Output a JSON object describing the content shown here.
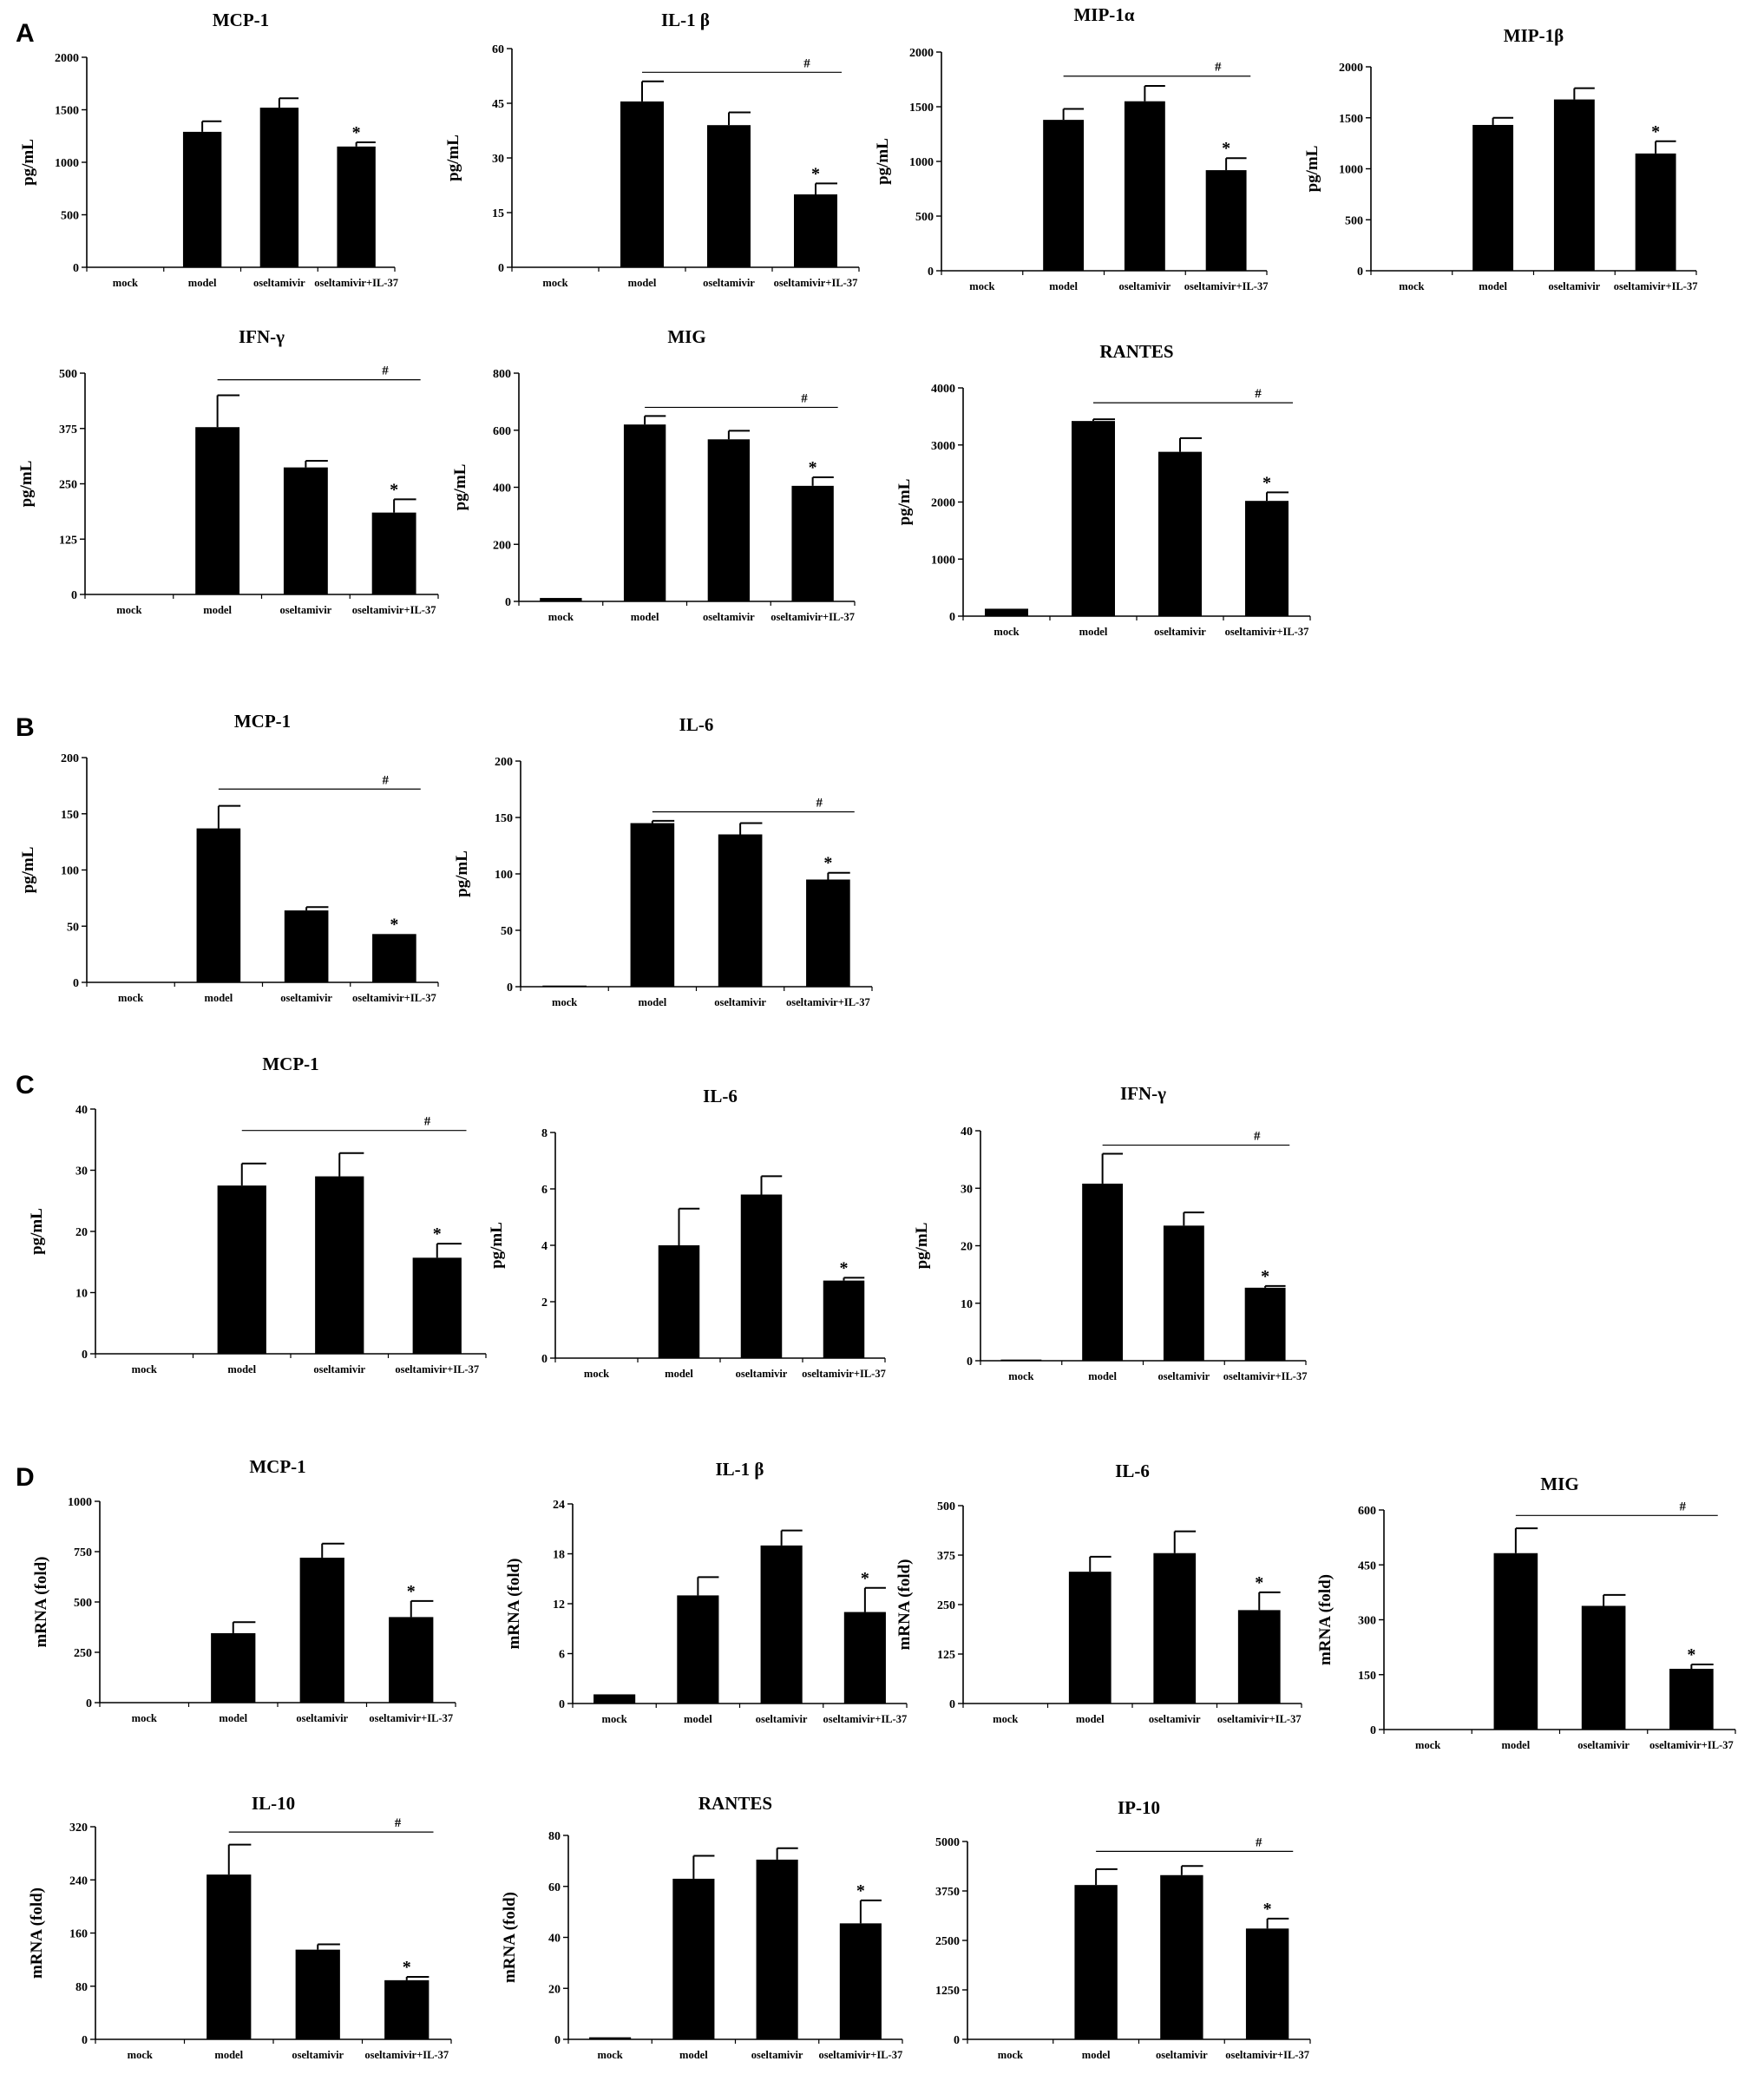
{
  "panels": [
    {
      "label": "A"
    },
    {
      "label": "B"
    },
    {
      "label": "C"
    },
    {
      "label": "D"
    }
  ],
  "chart_data": [
    {
      "panel": "A",
      "type": "bar",
      "title": "MCP-1",
      "ylabel": "pg/mL",
      "ylim": [
        0,
        2000
      ],
      "yticks": [
        0,
        500,
        1000,
        1500,
        2000
      ],
      "categories": [
        "mock",
        "model",
        "oseltamivir",
        "oseltamivir+IL-37"
      ],
      "values": [
        0,
        1290,
        1520,
        1150
      ],
      "errors": [
        0,
        100,
        90,
        40
      ],
      "stars": [
        "",
        "",
        "",
        "*"
      ],
      "hash": null
    },
    {
      "panel": "A",
      "type": "bar",
      "title": "IL-1 β",
      "ylabel": "pg/mL",
      "ylim": [
        0,
        60
      ],
      "yticks": [
        0,
        15,
        30,
        45,
        60
      ],
      "categories": [
        "mock",
        "model",
        "oseltamivir",
        "oseltamivir+IL-37"
      ],
      "values": [
        0,
        45.5,
        39,
        20
      ],
      "errors": [
        0,
        5.5,
        3.5,
        3
      ],
      "stars": [
        "",
        "",
        "",
        "*"
      ],
      "hash": {
        "label": "#",
        "from": 1,
        "to": 3,
        "y": 53.5
      }
    },
    {
      "panel": "A",
      "type": "bar",
      "title": "MIP-1α",
      "ylabel": "pg/mL",
      "ylim": [
        0,
        2000
      ],
      "yticks": [
        0,
        500,
        1000,
        1500,
        2000
      ],
      "categories": [
        "mock",
        "model",
        "oseltamivir",
        "oseltamivir+IL-37"
      ],
      "values": [
        0,
        1380,
        1550,
        920
      ],
      "errors": [
        0,
        100,
        140,
        110
      ],
      "stars": [
        "",
        "",
        "",
        "*"
      ],
      "hash": {
        "label": "#",
        "from": 1,
        "to": 3,
        "y": 1780
      }
    },
    {
      "panel": "A",
      "type": "bar",
      "title": "MIP-1β",
      "ylabel": "pg/mL",
      "ylim": [
        0,
        2000
      ],
      "yticks": [
        0,
        500,
        1000,
        1500,
        2000
      ],
      "categories": [
        "mock",
        "model",
        "oseltamivir",
        "oseltamivir+IL-37"
      ],
      "values": [
        0,
        1430,
        1680,
        1150
      ],
      "errors": [
        0,
        70,
        110,
        120
      ],
      "stars": [
        "",
        "",
        "",
        "*"
      ],
      "hash": null
    },
    {
      "panel": "A",
      "type": "bar",
      "title": "IFN-γ",
      "ylabel": "pg/mL",
      "ylim": [
        0,
        500
      ],
      "yticks": [
        0,
        125,
        250,
        375,
        500
      ],
      "categories": [
        "mock",
        "model",
        "oseltamivir",
        "oseltamivir+IL-37"
      ],
      "values": [
        0,
        378,
        287,
        185
      ],
      "errors": [
        0,
        72,
        15,
        30
      ],
      "stars": [
        "",
        "",
        "",
        "*"
      ],
      "hash": {
        "label": "#",
        "from": 1,
        "to": 3,
        "y": 485
      }
    },
    {
      "panel": "A",
      "type": "bar",
      "title": "MIG",
      "ylabel": "pg/mL",
      "ylim": [
        0,
        800
      ],
      "yticks": [
        0,
        200,
        400,
        600,
        800
      ],
      "categories": [
        "mock",
        "model",
        "oseltamivir",
        "oseltamivir+IL-37"
      ],
      "values": [
        12,
        620,
        568,
        405
      ],
      "errors": [
        0,
        30,
        30,
        30
      ],
      "stars": [
        "",
        "",
        "",
        "*"
      ],
      "hash": {
        "label": "#",
        "from": 1,
        "to": 3,
        "y": 680
      }
    },
    {
      "panel": "A",
      "type": "bar",
      "title": "RANTES",
      "ylabel": "pg/mL",
      "ylim": [
        0,
        4000
      ],
      "yticks": [
        0,
        1000,
        2000,
        3000,
        4000
      ],
      "categories": [
        "mock",
        "model",
        "oseltamivir",
        "oseltamivir+IL-37"
      ],
      "values": [
        130,
        3420,
        2880,
        2020
      ],
      "errors": [
        0,
        30,
        240,
        150
      ],
      "stars": [
        "",
        "",
        "",
        "*"
      ],
      "hash": {
        "label": "#",
        "from": 1,
        "to": 3,
        "y": 3740
      }
    },
    {
      "panel": "B",
      "type": "bar",
      "title": "MCP-1",
      "ylabel": "pg/mL",
      "ylim": [
        0,
        200
      ],
      "yticks": [
        0,
        50,
        100,
        150,
        200
      ],
      "categories": [
        "mock",
        "model",
        "oseltamivir",
        "oseltamivir+IL-37"
      ],
      "values": [
        0,
        137,
        64,
        43
      ],
      "errors": [
        0,
        20,
        3,
        0
      ],
      "stars": [
        "",
        "",
        "",
        "*"
      ],
      "hash": {
        "label": "#",
        "from": 1,
        "to": 3,
        "y": 172
      }
    },
    {
      "panel": "B",
      "type": "bar",
      "title": "IL-6",
      "ylabel": "pg/mL",
      "ylim": [
        0,
        200
      ],
      "yticks": [
        0,
        50,
        100,
        150,
        200
      ],
      "categories": [
        "mock",
        "model",
        "oseltamivir",
        "oseltamivir+IL-37"
      ],
      "values": [
        1,
        145,
        135,
        95
      ],
      "errors": [
        0,
        2,
        10,
        6
      ],
      "stars": [
        "",
        "",
        "",
        "*"
      ],
      "hash": {
        "label": "#",
        "from": 1,
        "to": 3,
        "y": 155
      }
    },
    {
      "panel": "C",
      "type": "bar",
      "title": "MCP-1",
      "ylabel": "pg/mL",
      "ylim": [
        0,
        40
      ],
      "yticks": [
        0,
        10,
        20,
        30,
        40
      ],
      "categories": [
        "mock",
        "model",
        "oseltamivir",
        "oseltamivir+IL-37"
      ],
      "values": [
        0,
        27.5,
        29,
        15.7
      ],
      "errors": [
        0,
        3.6,
        3.8,
        2.3
      ],
      "stars": [
        "",
        "",
        "",
        "*"
      ],
      "hash": {
        "label": "#",
        "from": 1,
        "to": 3,
        "y": 36.5
      }
    },
    {
      "panel": "C",
      "type": "bar",
      "title": "IL-6",
      "ylabel": "pg/mL",
      "ylim": [
        0,
        8
      ],
      "yticks": [
        0,
        2,
        4,
        6,
        8
      ],
      "categories": [
        "mock",
        "model",
        "oseltamivir",
        "oseltamivir+IL-37"
      ],
      "values": [
        0,
        4,
        5.8,
        2.75
      ],
      "errors": [
        0,
        1.3,
        0.65,
        0.1
      ],
      "stars": [
        "",
        "",
        "",
        "*"
      ],
      "hash": null
    },
    {
      "panel": "C",
      "type": "bar",
      "title": "IFN-γ",
      "ylabel": "pg/mL",
      "ylim": [
        0,
        40
      ],
      "yticks": [
        0,
        10,
        20,
        30,
        40
      ],
      "categories": [
        "mock",
        "model",
        "oseltamivir",
        "oseltamivir+IL-37"
      ],
      "values": [
        0.2,
        30.8,
        23.5,
        12.7
      ],
      "errors": [
        0,
        5.2,
        2.3,
        0.3
      ],
      "stars": [
        "",
        "",
        "",
        "*"
      ],
      "hash": {
        "label": "#",
        "from": 1,
        "to": 3,
        "y": 37.5
      }
    },
    {
      "panel": "D",
      "type": "bar",
      "title": "MCP-1",
      "ylabel": "mRNA (fold)",
      "ylim": [
        0,
        1000
      ],
      "yticks": [
        0,
        250,
        500,
        750,
        1000
      ],
      "categories": [
        "mock",
        "model",
        "oseltamivir",
        "oseltamivir+IL-37"
      ],
      "values": [
        0,
        345,
        720,
        425
      ],
      "errors": [
        0,
        55,
        70,
        80
      ],
      "stars": [
        "",
        "",
        "",
        "*"
      ],
      "hash": null
    },
    {
      "panel": "D",
      "type": "bar",
      "title": "IL-1 β",
      "ylabel": "mRNA (fold)",
      "ylim": [
        0,
        24
      ],
      "yticks": [
        0,
        6,
        12,
        18,
        24
      ],
      "categories": [
        "mock",
        "model",
        "oseltamivir",
        "oseltamivir+IL-37"
      ],
      "values": [
        1.1,
        13,
        19,
        11
      ],
      "errors": [
        0,
        2.2,
        1.8,
        2.9
      ],
      "stars": [
        "",
        "",
        "",
        "*"
      ],
      "hash": null
    },
    {
      "panel": "D",
      "type": "bar",
      "title": "IL-6",
      "ylabel": "mRNA (fold)",
      "ylim": [
        0,
        500
      ],
      "yticks": [
        0,
        125,
        250,
        375,
        500
      ],
      "categories": [
        "mock",
        "model",
        "oseltamivir",
        "oseltamivir+IL-37"
      ],
      "values": [
        0,
        333,
        380,
        236
      ],
      "errors": [
        0,
        38,
        55,
        45
      ],
      "stars": [
        "",
        "",
        "",
        "*"
      ],
      "hash": null
    },
    {
      "panel": "D",
      "type": "bar",
      "title": "MIG",
      "ylabel": "mRNA (fold)",
      "ylim": [
        0,
        600
      ],
      "yticks": [
        0,
        150,
        300,
        450,
        600
      ],
      "categories": [
        "mock",
        "model",
        "oseltamivir",
        "oseltamivir+IL-37"
      ],
      "values": [
        0,
        482,
        338,
        166
      ],
      "errors": [
        0,
        68,
        30,
        12
      ],
      "stars": [
        "",
        "",
        "",
        "*"
      ],
      "hash": {
        "label": "#",
        "from": 1,
        "to": 3,
        "y": 585
      }
    },
    {
      "panel": "D",
      "type": "bar",
      "title": "IL-10",
      "ylabel": "mRNA (fold)",
      "ylim": [
        0,
        320
      ],
      "yticks": [
        0,
        80,
        160,
        240,
        320
      ],
      "categories": [
        "mock",
        "model",
        "oseltamivir",
        "oseltamivir+IL-37"
      ],
      "values": [
        0,
        248,
        135,
        89
      ],
      "errors": [
        0,
        45,
        8,
        5
      ],
      "stars": [
        "",
        "",
        "",
        "*"
      ],
      "hash": {
        "label": "#",
        "from": 1,
        "to": 3,
        "y": 312
      }
    },
    {
      "panel": "D",
      "type": "bar",
      "title": "RANTES",
      "ylabel": "mRNA (fold)",
      "ylim": [
        0,
        80
      ],
      "yticks": [
        0,
        20,
        40,
        60,
        80
      ],
      "categories": [
        "mock",
        "model",
        "oseltamivir",
        "oseltamivir+IL-37"
      ],
      "values": [
        0.8,
        63,
        70.5,
        45.5
      ],
      "errors": [
        0,
        9,
        4.5,
        9
      ],
      "stars": [
        "",
        "",
        "",
        "*"
      ],
      "hash": null
    },
    {
      "panel": "D",
      "type": "bar",
      "title": "IP-10",
      "ylabel": "",
      "ylim": [
        0,
        5000
      ],
      "yticks": [
        0,
        1250,
        2500,
        3750,
        5000
      ],
      "ytickLabels": [
        "0",
        "1250",
        "2500",
        "3750",
        "5000"
      ],
      "categories": [
        "mock",
        "model",
        "oseltamivir",
        "oseltamivir+IL-37"
      ],
      "values": [
        0,
        3900,
        4150,
        2800
      ],
      "errors": [
        0,
        400,
        230,
        250
      ],
      "stars": [
        "",
        "",
        "",
        "*"
      ],
      "hash": {
        "label": "#",
        "from": 1,
        "to": 3,
        "y": 4750
      }
    }
  ]
}
